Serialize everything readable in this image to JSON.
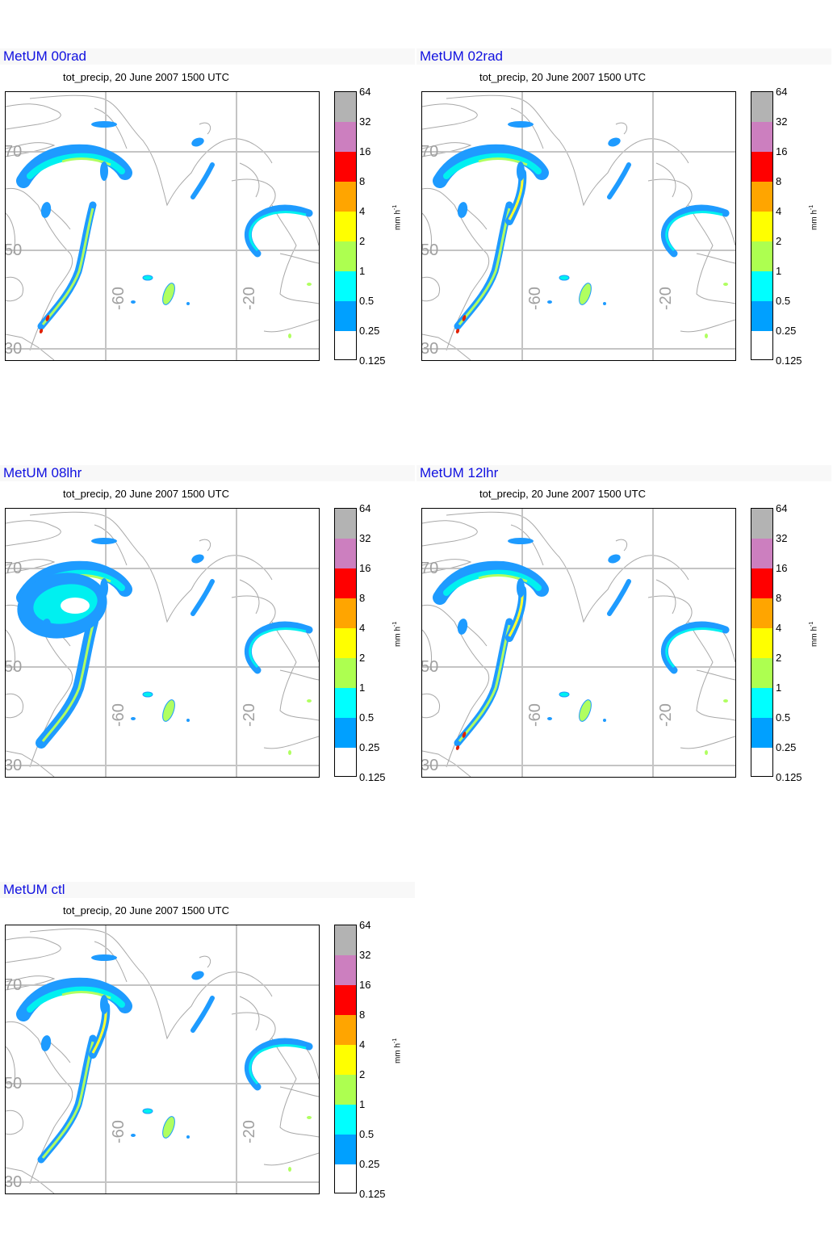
{
  "panels": [
    {
      "name": "MetUM 00rad",
      "subtitle": "tot_precip, 20 June 2007 1500 UTC",
      "variant": 0
    },
    {
      "name": "MetUM 02rad",
      "subtitle": "tot_precip, 20 June 2007 1500 UTC",
      "variant": 1
    },
    {
      "name": "MetUM 08lhr",
      "subtitle": "tot_precip, 20 June 2007 1500 UTC",
      "variant": 2
    },
    {
      "name": "MetUM 12lhr",
      "subtitle": "tot_precip, 20 June 2007 1500 UTC",
      "variant": 3
    },
    {
      "name": "MetUM ctl",
      "subtitle": "tot_precip, 20 June 2007 1500 UTC",
      "variant": 4
    }
  ],
  "map": {
    "lat_labels": [
      "70",
      "50",
      "30"
    ],
    "lon_labels": [
      "-60",
      "-20"
    ]
  },
  "colorbar": {
    "unit_text": "mm h",
    "unit_exponent": "-1",
    "levels": [
      "64",
      "32",
      "16",
      "8",
      "4",
      "2",
      "1",
      "0.5",
      "0.25",
      "0.125"
    ],
    "colors": [
      "#b3b3b3",
      "#cc7fbf",
      "#ff0000",
      "#ffa500",
      "#ffff00",
      "#adff50",
      "#00ffff",
      "#00a0ff",
      "#ffffff"
    ]
  }
}
